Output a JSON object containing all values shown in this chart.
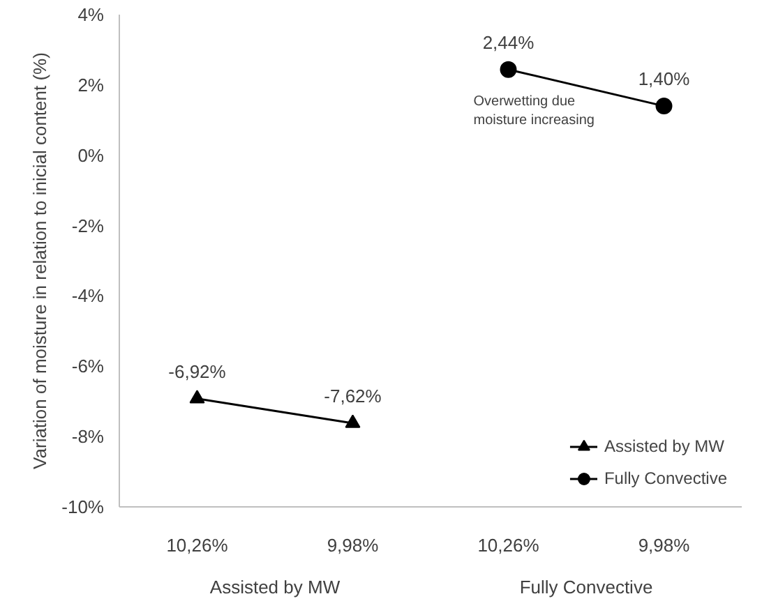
{
  "chart_data": {
    "type": "line",
    "ylabel": "Variation of moisture in relation to inicial content (%)",
    "categories": [
      "10,26%",
      "9,98%",
      "10,26%",
      "9,98%"
    ],
    "series": [
      {
        "name": "Assisted by MW",
        "color": "#000000",
        "marker": "triangle",
        "values": [
          -6.92,
          -7.62,
          null,
          null
        ],
        "value_labels": [
          "-6,92%",
          "-7,62%",
          null,
          null
        ]
      },
      {
        "name": "Fully Convective",
        "color": "#000000",
        "marker": "circle",
        "values": [
          null,
          null,
          2.44,
          1.4
        ],
        "value_labels": [
          null,
          null,
          "2,44%",
          "1,40%"
        ]
      }
    ],
    "ylim": [
      -10,
      4
    ],
    "yticks": [
      {
        "value": -10,
        "label": "-10%"
      },
      {
        "value": -8,
        "label": "-8%"
      },
      {
        "value": -6,
        "label": "-6%"
      },
      {
        "value": -4,
        "label": "-4%"
      },
      {
        "value": -2,
        "label": "-2%"
      },
      {
        "value": 0,
        "label": "0%"
      },
      {
        "value": 2,
        "label": "2%"
      },
      {
        "value": 4,
        "label": "4%"
      }
    ],
    "annotations": [
      "Assisted by MW",
      "Fully Convective",
      "Overwetting due moisture increasing"
    ],
    "legend": "bottom right",
    "grid": false,
    "line_style": "solid"
  }
}
